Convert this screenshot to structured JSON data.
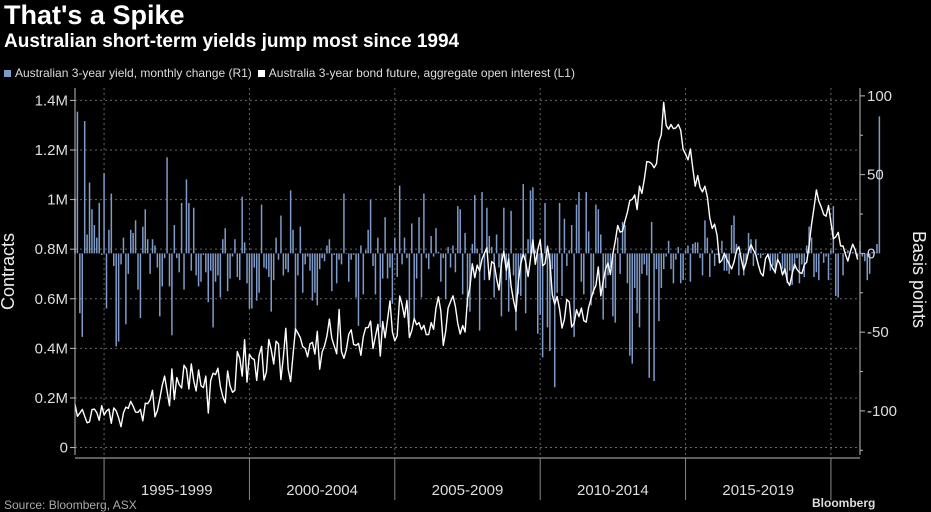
{
  "title": "That's a Spike",
  "subtitle": "Australian short-term yields jump most since 1994",
  "legend": {
    "bars": "Australian 3-year yield, monthly change (R1)",
    "line": "Australia 3-year bond future, aggregate open interest (L1)"
  },
  "colors": {
    "bars": "#7f9bc9",
    "line": "#ffffff",
    "grid": "#666666",
    "background": "#000000"
  },
  "footer": {
    "source": "Source: Bloomberg, ASX",
    "brand": "Bloomberg"
  },
  "chart_data": {
    "type": "bar+line",
    "title": "That's a Spike",
    "left_axis": {
      "label": "Contracts",
      "range": [
        -30000,
        1450000
      ],
      "ticks": [
        0,
        200000,
        400000,
        600000,
        800000,
        1000000,
        1200000,
        1400000
      ],
      "tick_labels": [
        "0",
        "0.2M",
        "0.4M",
        "0.6M",
        "0.8M",
        "1M",
        "1.2M",
        "1.4M"
      ]
    },
    "right_axis": {
      "label": "Basis points",
      "range": [
        -128,
        105
      ],
      "ticks": [
        -100,
        -50,
        0,
        50,
        100
      ],
      "tick_labels": [
        "-100",
        "-50",
        "0",
        "50",
        "100"
      ]
    },
    "x_axis": {
      "range": [
        1994.0,
        2021.0
      ],
      "period_labels": [
        "1995-1999",
        "2000-2004",
        "2005-2009",
        "2010-2014",
        "2015-2019"
      ],
      "period_bounds": [
        1995,
        2000,
        2005,
        2010,
        2015,
        2020
      ]
    },
    "bar_series": {
      "name": "Australian 3-year yield, monthly change (R1)",
      "axis": "right",
      "start_year": 1994.0,
      "step_years": 0.0833333,
      "values": [
        35,
        90,
        -38,
        -53,
        84,
        12,
        45,
        28,
        18,
        10,
        32,
        -1,
        51,
        -35,
        15,
        38,
        -8,
        -59,
        -56,
        -7,
        10,
        -45,
        -13,
        15,
        13,
        21,
        -23,
        -41,
        17,
        28,
        9,
        -13,
        9,
        5,
        -9,
        -40,
        -21,
        -3,
        61,
        -21,
        -52,
        18,
        -3,
        -12,
        32,
        -23,
        47,
        32,
        -11,
        29,
        -14,
        -21,
        -18,
        -1,
        -12,
        -31,
        -11,
        -47,
        -18,
        -14,
        -28,
        9,
        16,
        -24,
        -16,
        -2,
        9,
        -15,
        -17,
        36,
        7,
        -19,
        -35,
        -35,
        -9,
        -30,
        -25,
        31,
        -9,
        -10,
        -15,
        -37,
        -17,
        10,
        -4,
        24,
        -14,
        -10,
        -12,
        40,
        15,
        -52,
        -14,
        17,
        -25,
        -7,
        -2,
        -11,
        -30,
        -25,
        -33,
        -10,
        -3,
        -5,
        5,
        9,
        -24,
        -1,
        -19,
        -4,
        -7,
        38,
        0,
        -18,
        -4,
        -1,
        -28,
        -46,
        5,
        -26,
        2,
        15,
        34,
        -8,
        -26,
        10,
        -47,
        -16,
        23,
        -16,
        -9,
        -32,
        10,
        -15,
        43,
        -7,
        10,
        -3,
        -47,
        19,
        -42,
        -16,
        23,
        -28,
        38,
        -3,
        -10,
        11,
        -2,
        16,
        1,
        -18,
        -3,
        -29,
        4,
        -9,
        5,
        -12,
        30,
        28,
        -26,
        13,
        -34,
        -37,
        6,
        37,
        3,
        -49,
        39,
        -17,
        29,
        11,
        4,
        -28,
        12,
        -9,
        -40,
        29,
        -17,
        -37,
        27,
        -14,
        -49,
        -26,
        -27,
        44,
        -38,
        9,
        40,
        42,
        2,
        -51,
        -39,
        -66,
        32,
        -47,
        -62,
        -10,
        -85,
        -25,
        32,
        -27,
        22,
        -8,
        2,
        18,
        -53,
        31,
        39,
        -18,
        -26,
        39,
        14,
        -33,
        -26,
        31,
        28,
        12,
        -42,
        -22,
        -14,
        -9,
        -40,
        -44,
        10,
        -13,
        20,
        18,
        -19,
        -65,
        -70,
        -22,
        -38,
        -47,
        -13,
        -7,
        -14,
        -79,
        20,
        -81,
        -10,
        -43,
        -22,
        -10,
        -2,
        8,
        -10,
        -19,
        -4,
        4,
        -19,
        -17,
        2,
        5,
        -18,
        6,
        7,
        7,
        -3,
        -14,
        21,
        10,
        -15,
        2,
        -8,
        -1,
        -6,
        8,
        -11,
        -11,
        -13,
        18,
        24,
        6,
        -14,
        0,
        -14,
        -5,
        13,
        9,
        -8,
        9,
        -1,
        -3,
        -1,
        0,
        -2,
        -11,
        -8,
        -13,
        -5,
        1,
        -10,
        -13,
        -19,
        -11,
        -20,
        -10,
        -3,
        -19,
        -7,
        -15,
        5,
        17,
        10,
        -15,
        -12,
        -17,
        1,
        -6,
        -2,
        -17,
        2,
        30,
        -27,
        -28,
        0,
        -14,
        1,
        2,
        1,
        1,
        0,
        -2,
        8,
        -2,
        -5,
        -17,
        -13,
        1,
        1,
        6,
        87
      ]
    },
    "line_series": {
      "name": "Australia 3-year bond future, aggregate open interest (L1)",
      "axis": "left",
      "start_year": 1994.0,
      "step_years": 0.0833333,
      "values": [
        175000,
        126000,
        139000,
        154000,
        126000,
        100000,
        104000,
        153000,
        155000,
        141000,
        110000,
        169000,
        131000,
        148000,
        155000,
        98000,
        160000,
        148000,
        120000,
        84000,
        141000,
        163000,
        158000,
        186000,
        167000,
        143000,
        142000,
        154000,
        108000,
        179000,
        177000,
        192000,
        231000,
        124000,
        149000,
        197000,
        250000,
        288000,
        227000,
        169000,
        317000,
        194000,
        282000,
        254000,
        240000,
        332000,
        317000,
        236000,
        337000,
        270000,
        228000,
        313000,
        249000,
        242000,
        288000,
        139000,
        271000,
        300000,
        294000,
        320000,
        246000,
        206000,
        180000,
        309000,
        248000,
        223000,
        231000,
        387000,
        360000,
        288000,
        435000,
        264000,
        376000,
        360000,
        355000,
        271000,
        372000,
        408000,
        272000,
        304000,
        436000,
        395000,
        337000,
        429000,
        418000,
        274000,
        367000,
        481000,
        315000,
        266000,
        377000,
        479000,
        462000,
        443000,
        407000,
        400000,
        366000,
        418000,
        424000,
        377000,
        469000,
        316000,
        385000,
        411000,
        451000,
        518000,
        441000,
        410000,
        378000,
        557000,
        386000,
        360000,
        396000,
        457000,
        475000,
        416000,
        412000,
        420000,
        372000,
        448000,
        483000,
        484000,
        510000,
        399000,
        448000,
        497000,
        369000,
        508000,
        443000,
        515000,
        592000,
        467000,
        430000,
        452000,
        611000,
        576000,
        525000,
        593000,
        444000,
        472000,
        521000,
        495000,
        504000,
        476000,
        493000,
        455000,
        456000,
        504000,
        477000,
        563000,
        608000,
        551000,
        412000,
        469000,
        563000,
        588000,
        612000,
        569000,
        500000,
        458000,
        492000,
        466000,
        600000,
        645000,
        741000,
        685000,
        736000,
        712000,
        759000,
        784000,
        806000,
        677000,
        750000,
        741000,
        680000,
        635000,
        742000,
        791000,
        714000,
        761000,
        650000,
        593000,
        549000,
        672000,
        741000,
        781000,
        751000,
        690000,
        762000,
        838000,
        739000,
        798000,
        838000,
        733000,
        742000,
        812000,
        753000,
        616000,
        578000,
        609000,
        557000,
        482000,
        517000,
        597000,
        587000,
        486000,
        501000,
        556000,
        528000,
        563000,
        512000,
        506000,
        565000,
        601000,
        633000,
        653000,
        728000,
        612000,
        672000,
        720000,
        744000,
        698000,
        781000,
        833000,
        896000,
        869000,
        873000,
        914000,
        949000,
        996000,
        1001000,
        1019000,
        960000,
        1054000,
        1025000,
        1084000,
        1153000,
        1152000,
        1145000,
        1128000,
        1145000,
        1234000,
        1262000,
        1392000,
        1299000,
        1284000,
        1303000,
        1286000,
        1289000,
        1303000,
        1280000,
        1203000,
        1183000,
        1160000,
        1204000,
        1126000,
        1054000,
        1097000,
        1048000,
        1031000,
        1054000,
        1010000,
        926000,
        884000,
        901000,
        855000,
        745000,
        755000,
        784000,
        760000,
        740000,
        720000,
        748000,
        793000,
        810000,
        759000,
        716000,
        746000,
        789000,
        818000,
        797000,
        778000,
        739000,
        704000,
        692000,
        762000,
        779000,
        742000,
        722000,
        707000,
        758000,
        741000,
        696000,
        721000,
        670000,
        654000,
        701000,
        740000,
        718000,
        706000,
        702000,
        737000,
        748000,
        816000,
        899000,
        967000,
        1039000,
        994000,
        971000,
        940000,
        933000,
        976000,
        909000,
        842000,
        850000,
        868000,
        813000,
        813000,
        778000,
        752000,
        790000,
        820000,
        797000,
        758000
      ]
    }
  }
}
